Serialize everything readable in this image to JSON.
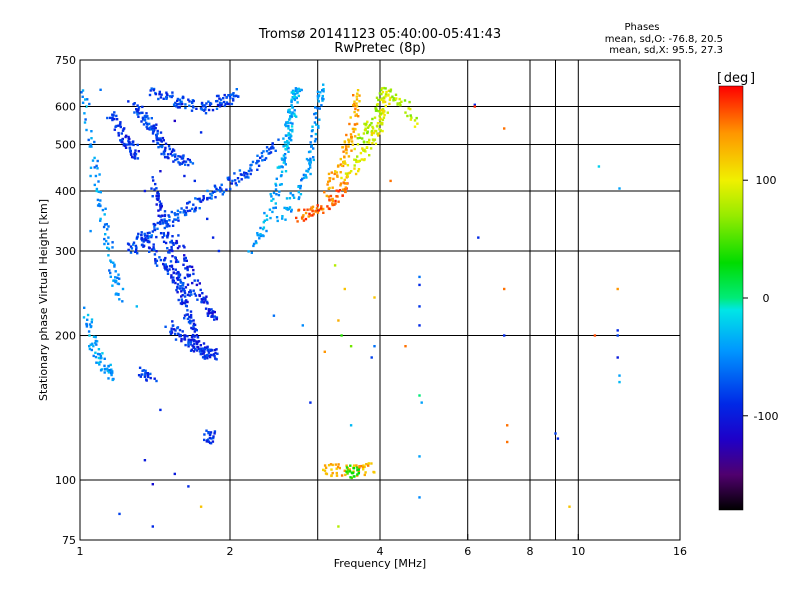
{
  "chart_data": {
    "type": "scatter",
    "title": "Tromsø 20141123 05:40:00-05:41:43",
    "subtitle": "RwPretec (8p)",
    "stats": {
      "heading": "Phases",
      "line1": "mean, sd,O: -76.8, 20.5",
      "line2": "mean, sd,X:  95.5, 27.3"
    },
    "xlabel": "Frequency [MHz]",
    "ylabel": "Stationary phase Virtual Height [km]",
    "x_scale": "log",
    "y_scale": "log",
    "xlim": [
      1,
      16
    ],
    "ylim": [
      75,
      750
    ],
    "x_ticks": [
      {
        "value": 1,
        "label": "1"
      },
      {
        "value": 2,
        "label": "2"
      },
      {
        "value": 4,
        "label": "4"
      },
      {
        "value": 6,
        "label": "6"
      },
      {
        "value": 8,
        "label": "8"
      },
      {
        "value": 10,
        "label": "10"
      },
      {
        "value": 16,
        "label": "16"
      }
    ],
    "y_ticks": [
      {
        "value": 75,
        "label": "75"
      },
      {
        "value": 100,
        "label": "100"
      },
      {
        "value": 200,
        "label": "200"
      },
      {
        "value": 300,
        "label": "300"
      },
      {
        "value": 400,
        "label": "400"
      },
      {
        "value": 500,
        "label": "500"
      },
      {
        "value": 600,
        "label": "600"
      },
      {
        "value": 750,
        "label": "750"
      }
    ],
    "x_grid": [
      2,
      3,
      4,
      6,
      8,
      9,
      10
    ],
    "y_grid": [
      100,
      200,
      300,
      400,
      500,
      600
    ],
    "colorbar": {
      "label": "deg",
      "range": [
        -180,
        180
      ],
      "ticks": [
        {
          "value": 100,
          "label": "100"
        },
        {
          "value": 0,
          "label": "0"
        },
        {
          "value": -100,
          "label": "-100"
        }
      ]
    },
    "grid": true,
    "legend": "none",
    "traces": [
      {
        "name": "",
        "phase": -80,
        "points": [
          [
            1.38,
            640
          ],
          [
            1.45,
            632
          ],
          [
            1.5,
            625
          ],
          [
            1.56,
            618
          ],
          [
            1.6,
            612
          ],
          [
            1.66,
            606
          ],
          [
            1.72,
            600
          ],
          [
            1.78,
            598
          ],
          [
            1.85,
            604
          ],
          [
            1.9,
            612
          ],
          [
            1.96,
            620
          ],
          [
            2.02,
            628
          ],
          [
            2.06,
            636
          ]
        ]
      },
      {
        "name": "",
        "phase": -80,
        "points": [
          [
            1.3,
            600
          ],
          [
            1.32,
            585
          ],
          [
            1.34,
            570
          ],
          [
            1.36,
            560
          ],
          [
            1.38,
            548
          ],
          [
            1.4,
            536
          ],
          [
            1.42,
            524
          ],
          [
            1.44,
            512
          ],
          [
            1.46,
            500
          ],
          [
            1.48,
            490
          ],
          [
            1.52,
            480
          ],
          [
            1.56,
            470
          ],
          [
            1.6,
            462
          ],
          [
            1.66,
            454
          ]
        ]
      },
      {
        "name": "",
        "phase": -90,
        "points": [
          [
            1.15,
            580
          ],
          [
            1.18,
            560
          ],
          [
            1.2,
            540
          ],
          [
            1.22,
            520
          ],
          [
            1.24,
            505
          ],
          [
            1.26,
            495
          ],
          [
            1.28,
            488
          ],
          [
            1.3,
            480
          ]
        ]
      },
      {
        "name": "",
        "phase": -75,
        "points": [
          [
            1.25,
            300
          ],
          [
            1.28,
            305
          ],
          [
            1.32,
            312
          ],
          [
            1.36,
            320
          ],
          [
            1.4,
            328
          ],
          [
            1.45,
            336
          ],
          [
            1.5,
            345
          ],
          [
            1.55,
            352
          ],
          [
            1.6,
            360
          ],
          [
            1.66,
            368
          ],
          [
            1.72,
            376
          ],
          [
            1.78,
            385
          ],
          [
            1.85,
            395
          ],
          [
            1.92,
            405
          ],
          [
            2.0,
            415
          ],
          [
            2.08,
            428
          ],
          [
            2.16,
            440
          ],
          [
            2.24,
            452
          ],
          [
            2.32,
            468
          ],
          [
            2.4,
            485
          ],
          [
            2.46,
            500
          ]
        ]
      },
      {
        "name": "",
        "phase": -90,
        "points": [
          [
            1.4,
            420
          ],
          [
            1.42,
            400
          ],
          [
            1.44,
            380
          ],
          [
            1.46,
            360
          ],
          [
            1.48,
            340
          ],
          [
            1.5,
            320
          ],
          [
            1.52,
            300
          ],
          [
            1.54,
            285
          ],
          [
            1.56,
            270
          ],
          [
            1.58,
            255
          ],
          [
            1.6,
            242
          ],
          [
            1.62,
            232
          ],
          [
            1.64,
            222
          ],
          [
            1.66,
            214
          ],
          [
            1.68,
            206
          ],
          [
            1.7,
            198
          ],
          [
            1.72,
            190
          ],
          [
            1.76,
            185
          ],
          [
            1.8,
            182
          ]
        ]
      },
      {
        "name": "",
        "phase": -95,
        "points": [
          [
            1.55,
            320
          ],
          [
            1.6,
            300
          ],
          [
            1.64,
            280
          ],
          [
            1.68,
            262
          ],
          [
            1.72,
            248
          ],
          [
            1.76,
            236
          ],
          [
            1.8,
            228
          ],
          [
            1.84,
            222
          ],
          [
            1.88,
            218
          ]
        ]
      },
      {
        "name": "",
        "phase": -85,
        "points": [
          [
            1.3,
            330
          ],
          [
            1.34,
            318
          ],
          [
            1.38,
            305
          ],
          [
            1.42,
            294
          ],
          [
            1.46,
            285
          ],
          [
            1.5,
            276
          ],
          [
            1.54,
            268
          ],
          [
            1.58,
            260
          ],
          [
            1.62,
            254
          ],
          [
            1.66,
            248
          ]
        ]
      },
      {
        "name": "",
        "phase": -40,
        "points": [
          [
            2.2,
            300
          ],
          [
            2.28,
            320
          ],
          [
            2.36,
            345
          ],
          [
            2.42,
            370
          ],
          [
            2.48,
            400
          ],
          [
            2.52,
            430
          ],
          [
            2.56,
            460
          ],
          [
            2.6,
            500
          ],
          [
            2.64,
            540
          ],
          [
            2.68,
            580
          ],
          [
            2.72,
            620
          ],
          [
            2.76,
            650
          ]
        ]
      },
      {
        "name": "",
        "phase": -45,
        "points": [
          [
            2.5,
            350
          ],
          [
            2.6,
            370
          ],
          [
            2.7,
            390
          ],
          [
            2.8,
            410
          ],
          [
            2.86,
            440
          ],
          [
            2.9,
            470
          ],
          [
            2.94,
            500
          ],
          [
            2.97,
            540
          ],
          [
            3.0,
            580
          ],
          [
            3.03,
            620
          ],
          [
            3.06,
            650
          ]
        ]
      },
      {
        "name": "",
        "phase": -30,
        "points": [
          [
            2.55,
            470
          ],
          [
            2.6,
            500
          ],
          [
            2.62,
            530
          ],
          [
            2.64,
            560
          ],
          [
            2.66,
            600
          ],
          [
            2.68,
            640
          ]
        ]
      },
      {
        "name": "",
        "phase": 155,
        "points": [
          [
            2.7,
            355
          ],
          [
            2.8,
            358
          ],
          [
            2.9,
            362
          ],
          [
            3.0,
            366
          ],
          [
            3.1,
            372
          ],
          [
            3.2,
            380
          ],
          [
            3.3,
            390
          ],
          [
            3.36,
            405
          ],
          [
            3.42,
            420
          ]
        ]
      },
      {
        "name": "",
        "phase": 130,
        "points": [
          [
            3.1,
            400
          ],
          [
            3.2,
            420
          ],
          [
            3.3,
            440
          ],
          [
            3.36,
            460
          ],
          [
            3.42,
            480
          ],
          [
            3.46,
            500
          ],
          [
            3.5,
            530
          ],
          [
            3.54,
            560
          ],
          [
            3.58,
            600
          ],
          [
            3.62,
            640
          ]
        ]
      },
      {
        "name": "",
        "phase": 95,
        "points": [
          [
            3.4,
            420
          ],
          [
            3.5,
            440
          ],
          [
            3.6,
            460
          ],
          [
            3.7,
            480
          ],
          [
            3.8,
            500
          ],
          [
            3.9,
            520
          ],
          [
            3.96,
            540
          ],
          [
            4.02,
            560
          ],
          [
            4.06,
            580
          ],
          [
            4.1,
            610
          ],
          [
            4.14,
            640
          ]
        ]
      },
      {
        "name": "",
        "phase": 80,
        "points": [
          [
            3.6,
            500
          ],
          [
            3.7,
            520
          ],
          [
            3.8,
            550
          ],
          [
            3.9,
            580
          ],
          [
            4.0,
            610
          ],
          [
            4.1,
            640
          ],
          [
            4.3,
            620
          ],
          [
            4.5,
            600
          ],
          [
            4.7,
            560
          ]
        ]
      },
      {
        "name": "",
        "phase": -50,
        "points": [
          [
            1.02,
            640
          ],
          [
            1.04,
            560
          ],
          [
            1.06,
            480
          ],
          [
            1.08,
            420
          ],
          [
            1.1,
            380
          ],
          [
            1.12,
            340
          ],
          [
            1.14,
            310
          ],
          [
            1.16,
            280
          ],
          [
            1.18,
            260
          ],
          [
            1.2,
            240
          ]
        ]
      },
      {
        "name": "",
        "phase": -40,
        "points": [
          [
            1.02,
            230
          ],
          [
            1.04,
            210
          ],
          [
            1.06,
            195
          ],
          [
            1.08,
            185
          ],
          [
            1.1,
            178
          ],
          [
            1.12,
            172
          ],
          [
            1.14,
            168
          ],
          [
            1.16,
            165
          ]
        ]
      },
      {
        "name": "",
        "phase": -90,
        "points": [
          [
            1.5,
            210
          ],
          [
            1.54,
            205
          ],
          [
            1.58,
            200
          ],
          [
            1.62,
            196
          ],
          [
            1.66,
            193
          ],
          [
            1.7,
            190
          ],
          [
            1.74,
            188
          ],
          [
            1.78,
            186
          ],
          [
            1.82,
            184
          ],
          [
            1.86,
            183
          ]
        ]
      },
      {
        "name": "",
        "phase": -85,
        "points": [
          [
            1.78,
            124
          ],
          [
            1.82,
            123
          ],
          [
            1.86,
            122
          ]
        ]
      },
      {
        "name": "",
        "phase": -80,
        "points": [
          [
            1.32,
            168
          ],
          [
            1.36,
            166
          ],
          [
            1.4,
            165
          ]
        ]
      },
      {
        "name": "",
        "phase": 130,
        "points": [
          [
            3.1,
            105
          ],
          [
            3.2,
            105
          ],
          [
            3.3,
            105
          ],
          [
            3.5,
            105
          ],
          [
            3.7,
            105
          ],
          [
            3.9,
            106
          ]
        ]
      },
      {
        "name": "",
        "phase": 40,
        "points": [
          [
            3.46,
            105
          ],
          [
            3.52,
            104
          ],
          [
            3.58,
            104
          ]
        ]
      }
    ],
    "scattered": [
      [
        4.8,
        265,
        -60
      ],
      [
        4.8,
        255,
        -90
      ],
      [
        4.8,
        230,
        -85
      ],
      [
        4.8,
        210,
        -90
      ],
      [
        4.8,
        150,
        0
      ],
      [
        4.85,
        145,
        -40
      ],
      [
        4.8,
        112,
        -40
      ],
      [
        4.8,
        92,
        -50
      ],
      [
        6.2,
        605,
        -90
      ],
      [
        6.2,
        600,
        170
      ],
      [
        6.3,
        320,
        -90
      ],
      [
        7.1,
        540,
        150
      ],
      [
        7.1,
        250,
        150
      ],
      [
        7.1,
        200,
        -90
      ],
      [
        7.2,
        130,
        150
      ],
      [
        7.2,
        120,
        150
      ],
      [
        9.0,
        125,
        -80
      ],
      [
        9.1,
        122,
        -90
      ],
      [
        9.6,
        88,
        120
      ],
      [
        10.8,
        200,
        160
      ],
      [
        11.0,
        450,
        -20
      ],
      [
        12.1,
        405,
        -40
      ],
      [
        12.0,
        250,
        140
      ],
      [
        12.0,
        205,
        -90
      ],
      [
        12.0,
        200,
        -80
      ],
      [
        12.0,
        180,
        -100
      ],
      [
        12.1,
        165,
        -40
      ],
      [
        12.1,
        160,
        -30
      ],
      [
        3.25,
        280,
        80
      ],
      [
        3.4,
        250,
        120
      ],
      [
        3.3,
        215,
        130
      ],
      [
        3.35,
        200,
        40
      ],
      [
        3.5,
        190,
        60
      ],
      [
        3.1,
        185,
        140
      ],
      [
        3.9,
        190,
        -60
      ],
      [
        3.85,
        180,
        -80
      ],
      [
        2.45,
        220,
        -60
      ],
      [
        2.8,
        210,
        -50
      ],
      [
        2.9,
        145,
        -90
      ],
      [
        3.5,
        130,
        -30
      ],
      [
        3.3,
        80,
        80
      ],
      [
        3.9,
        240,
        120
      ],
      [
        4.2,
        420,
        150
      ],
      [
        4.5,
        190,
        150
      ],
      [
        1.4,
        98,
        -110
      ],
      [
        1.55,
        103,
        -100
      ],
      [
        1.65,
        97,
        -90
      ],
      [
        1.75,
        88,
        120
      ],
      [
        1.4,
        80,
        -90
      ],
      [
        1.2,
        85,
        -80
      ],
      [
        1.55,
        560,
        -120
      ],
      [
        1.75,
        530,
        -90
      ],
      [
        1.05,
        430,
        -40
      ],
      [
        1.08,
        400,
        -20
      ],
      [
        1.1,
        350,
        -30
      ],
      [
        1.05,
        330,
        -50
      ],
      [
        1.15,
        270,
        -60
      ],
      [
        1.22,
        250,
        -40
      ],
      [
        1.3,
        230,
        -30
      ],
      [
        1.35,
        400,
        -100
      ],
      [
        1.45,
        440,
        -110
      ],
      [
        1.5,
        470,
        -95
      ],
      [
        1.62,
        430,
        -95
      ],
      [
        1.7,
        420,
        -90
      ],
      [
        1.75,
        380,
        -100
      ],
      [
        1.8,
        350,
        -90
      ],
      [
        1.85,
        320,
        -95
      ],
      [
        1.9,
        300,
        -90
      ],
      [
        1.25,
        615,
        -90
      ],
      [
        1.1,
        650,
        -60
      ],
      [
        1.03,
        600,
        -20
      ],
      [
        1.35,
        110,
        -100
      ],
      [
        1.45,
        140,
        -90
      ]
    ]
  }
}
